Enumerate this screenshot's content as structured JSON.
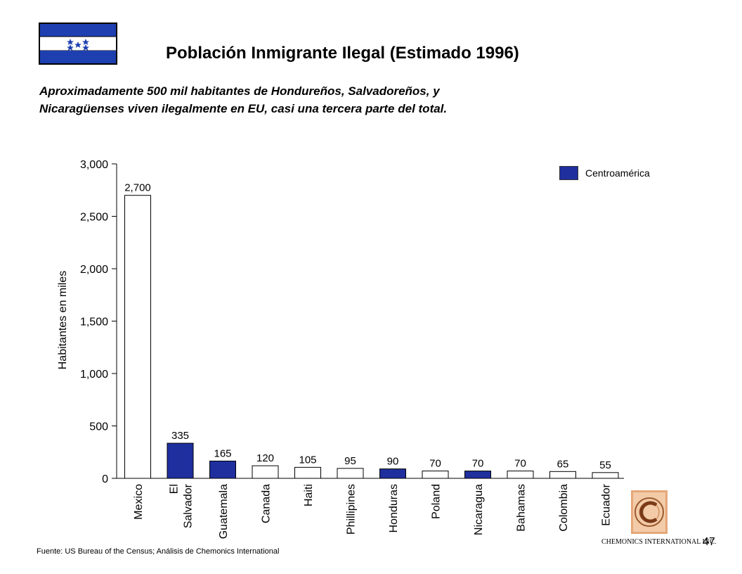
{
  "slide": {
    "title": "Población Inmigrante Ilegal (Estimado 1996)",
    "subtitle": "Aproximadamente 500 mil habitantes de Hondureños, Salvadoreños, y Nicaragüenses viven ilegalmente en EU, casi una tercera parte del total.",
    "source": "Fuente:  US Bureau  of the Census; Análisis de Chemonics International",
    "page_number": "47",
    "logo_text": "CHEMONICS INTERNATIONAL INC.",
    "flag_icon": "honduras-flag-icon"
  },
  "legend": {
    "label": "Centroamérica",
    "color": "#1f2f9e"
  },
  "colors": {
    "highlight": "#1f2f9e",
    "default": "#ffffff",
    "flag_blue": "#1e3fb0"
  },
  "chart_data": {
    "type": "bar",
    "title": "",
    "xlabel": "",
    "ylabel": "Habitantes en miles",
    "ylim": [
      0,
      3000
    ],
    "yticks": [
      0,
      500,
      1000,
      1500,
      2000,
      2500,
      3000
    ],
    "ytick_labels": [
      "0",
      "500",
      "1,000",
      "1,500",
      "2,000",
      "2,500",
      "3,000"
    ],
    "categories": [
      "Mexico",
      "El Salvador",
      "Guatemala",
      "Canada",
      "Haiti",
      "Phillipines",
      "Honduras",
      "Poland",
      "Nicaragua",
      "Bahamas",
      "Colombia",
      "Ecuador"
    ],
    "category_lines": [
      [
        "Mexico"
      ],
      [
        "El",
        "Salvador"
      ],
      [
        "Guatemala"
      ],
      [
        "Canada"
      ],
      [
        "Haiti"
      ],
      [
        "Phillipines"
      ],
      [
        "Honduras"
      ],
      [
        "Poland"
      ],
      [
        "Nicaragua"
      ],
      [
        "Bahamas"
      ],
      [
        "Colombia"
      ],
      [
        "Ecuador"
      ]
    ],
    "values": [
      2700,
      335,
      165,
      120,
      105,
      95,
      90,
      70,
      70,
      70,
      65,
      55
    ],
    "value_labels": [
      "2,700",
      "335",
      "165",
      "120",
      "105",
      "95",
      "90",
      "70",
      "70",
      "70",
      "65",
      "55"
    ],
    "highlighted": [
      false,
      true,
      true,
      false,
      false,
      false,
      true,
      false,
      true,
      false,
      false,
      false
    ],
    "grid": false,
    "legend_position": "top-right"
  }
}
